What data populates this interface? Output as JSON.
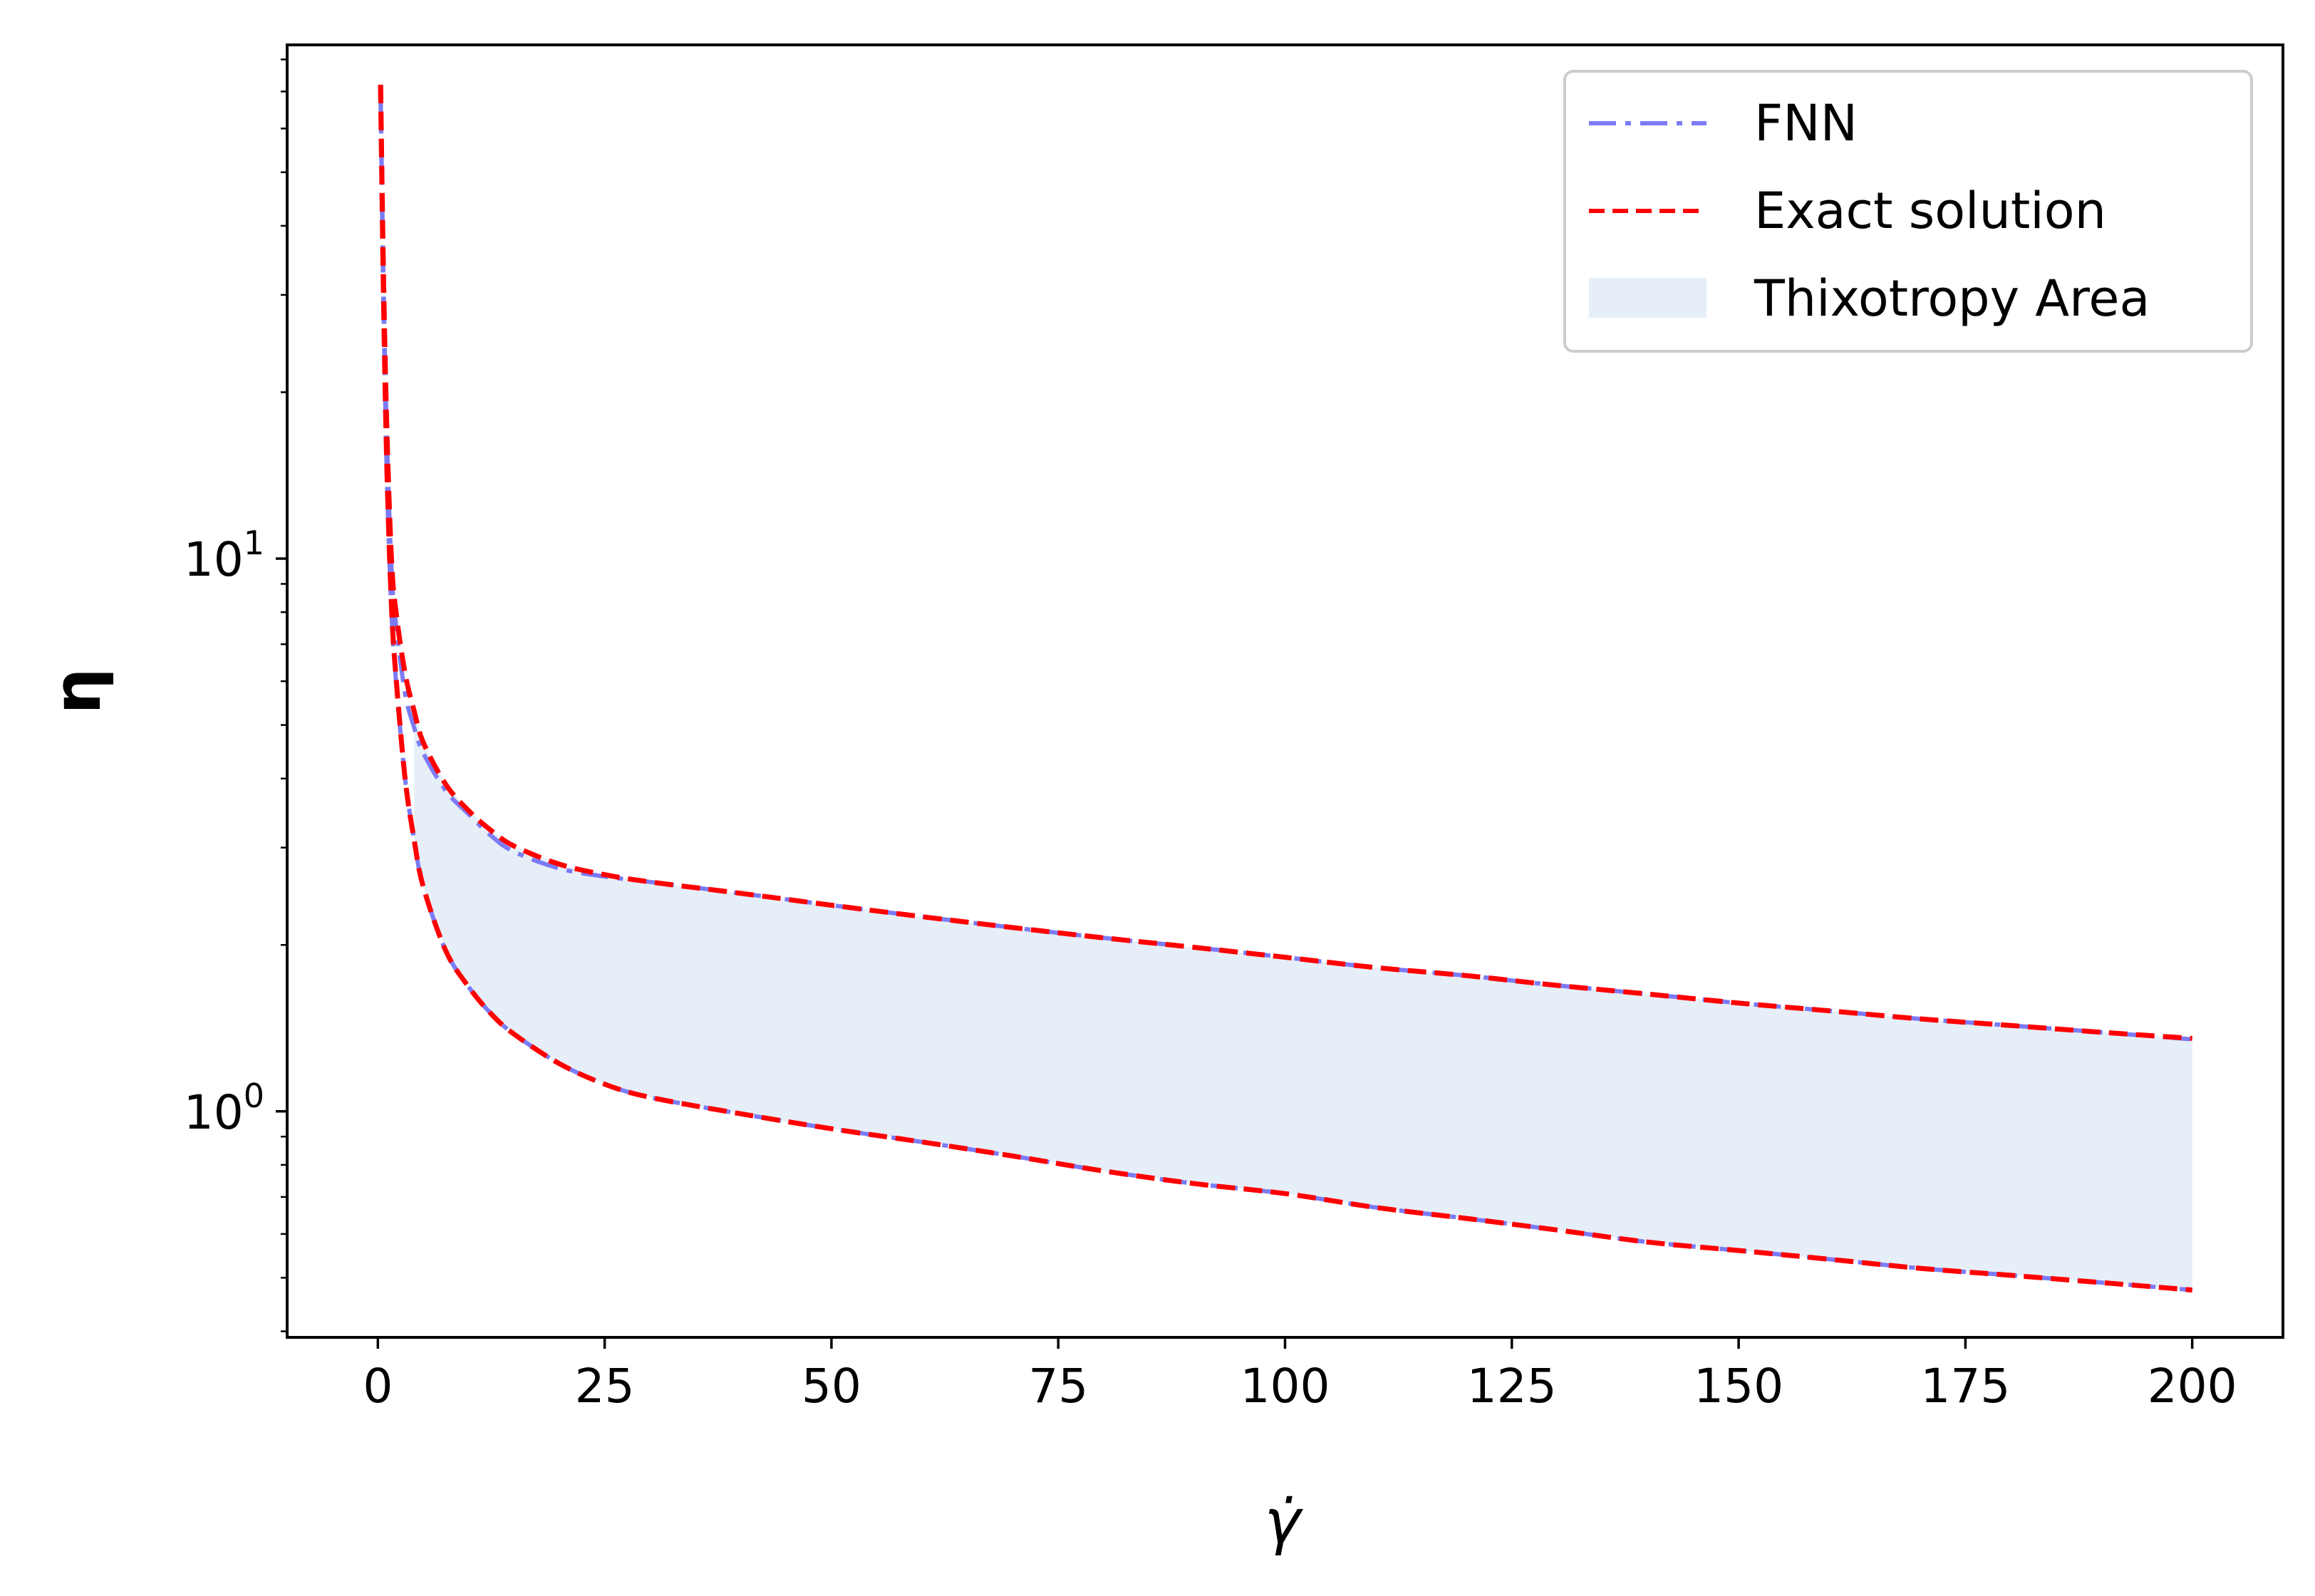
{
  "chart_data": {
    "type": "line",
    "xlabel": "γ̇",
    "ylabel": "η",
    "xlim": [
      -10,
      210
    ],
    "ylim": [
      0.39,
      85
    ],
    "yscale": "log",
    "grid": false,
    "legend_position": "top-right",
    "x_ticks": [
      0,
      25,
      50,
      75,
      100,
      125,
      150,
      175,
      200
    ],
    "x_tick_labels": [
      "0",
      "25",
      "50",
      "75",
      "100",
      "125",
      "150",
      "175",
      "200"
    ],
    "y_ticks": [
      1,
      10
    ],
    "y_tick_labels": [
      {
        "base": "10",
        "exp": "0"
      },
      {
        "base": "10",
        "exp": "1"
      }
    ],
    "x": [
      0.3,
      0.6,
      1,
      1.5,
      2,
      3,
      4,
      5,
      7.5,
      10,
      12.5,
      15,
      20,
      25,
      30,
      40,
      50,
      60,
      70,
      80,
      90,
      100,
      110,
      120,
      130,
      140,
      150,
      160,
      170,
      180,
      190,
      200
    ],
    "series": [
      {
        "name": "FNN",
        "color": "#7b7bf5",
        "style": "dashdot",
        "branches": [
          [
            70.0,
            33.0,
            16.5,
            9.6,
            7.6,
            5.7,
            4.95,
            4.45,
            3.8,
            3.45,
            3.15,
            2.95,
            2.75,
            2.66,
            2.6,
            2.48,
            2.36,
            2.25,
            2.15,
            2.06,
            1.98,
            1.9,
            1.82,
            1.76,
            1.69,
            1.63,
            1.57,
            1.52,
            1.47,
            1.43,
            1.39,
            1.35
          ],
          [
            70.0,
            30.0,
            14.0,
            8.0,
            6.0,
            4.0,
            3.1,
            2.55,
            1.95,
            1.68,
            1.5,
            1.38,
            1.22,
            1.12,
            1.06,
            0.99,
            0.93,
            0.88,
            0.83,
            0.78,
            0.74,
            0.71,
            0.67,
            0.64,
            0.61,
            0.58,
            0.56,
            0.54,
            0.52,
            0.505,
            0.49,
            0.475
          ]
        ]
      },
      {
        "name": "Exact solution",
        "color": "#ff0000",
        "style": "dashed",
        "branches": [
          [
            72.0,
            34.0,
            17.0,
            10.0,
            8.0,
            6.2,
            5.3,
            4.65,
            3.9,
            3.5,
            3.22,
            3.02,
            2.8,
            2.68,
            2.6,
            2.48,
            2.36,
            2.25,
            2.15,
            2.06,
            1.98,
            1.9,
            1.82,
            1.76,
            1.69,
            1.63,
            1.57,
            1.52,
            1.47,
            1.43,
            1.39,
            1.355
          ],
          [
            72.0,
            31.0,
            14.5,
            8.2,
            6.1,
            4.0,
            3.1,
            2.55,
            1.95,
            1.68,
            1.5,
            1.38,
            1.22,
            1.12,
            1.06,
            0.99,
            0.93,
            0.88,
            0.83,
            0.78,
            0.74,
            0.71,
            0.67,
            0.64,
            0.61,
            0.58,
            0.56,
            0.54,
            0.52,
            0.505,
            0.49,
            0.475
          ]
        ]
      },
      {
        "name": "Thixotropy Area",
        "color": "#e6eef7",
        "style": "fill_between",
        "x_start": 4
      }
    ]
  }
}
